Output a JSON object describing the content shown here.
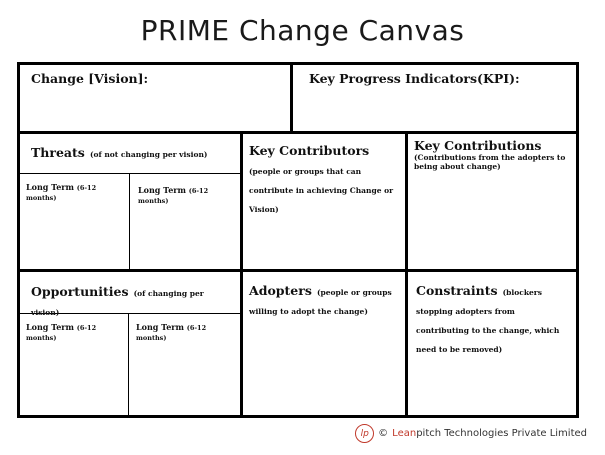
{
  "title": "PRIME Change Canvas",
  "vision": {
    "label": "Change [Vision]:"
  },
  "kpi": {
    "label": "Key Progress Indicators(KPI):"
  },
  "threats": {
    "label": "Threats",
    "note": "(of not changing per vision)",
    "long_term": "Long Term",
    "long_term_note": "(6-12 months)"
  },
  "key_contributors": {
    "label": "Key Contributors",
    "note": "(people or groups that can contribute in achieving Change or Vision)"
  },
  "key_contributions": {
    "label": "Key Contributions",
    "note": "(Contributions from the adopters to being about change)"
  },
  "opportunities": {
    "label": "Opportunities",
    "note": "(of changing per vision)",
    "long_term": "Long Term",
    "long_term_note": "(6-12 months)"
  },
  "adopters": {
    "label": "Adopters",
    "note": "(people or groups willing to adopt the change)"
  },
  "constraints": {
    "label": "Constraints",
    "note": "(blockers stopping adopters from contributing to the change, which need to be removed)"
  },
  "footer": {
    "logo": "lp",
    "copyright": "©",
    "brand": "Lean",
    "rest": "pitch Technologies Private Limited",
    "brand_color": "#c0392b"
  }
}
